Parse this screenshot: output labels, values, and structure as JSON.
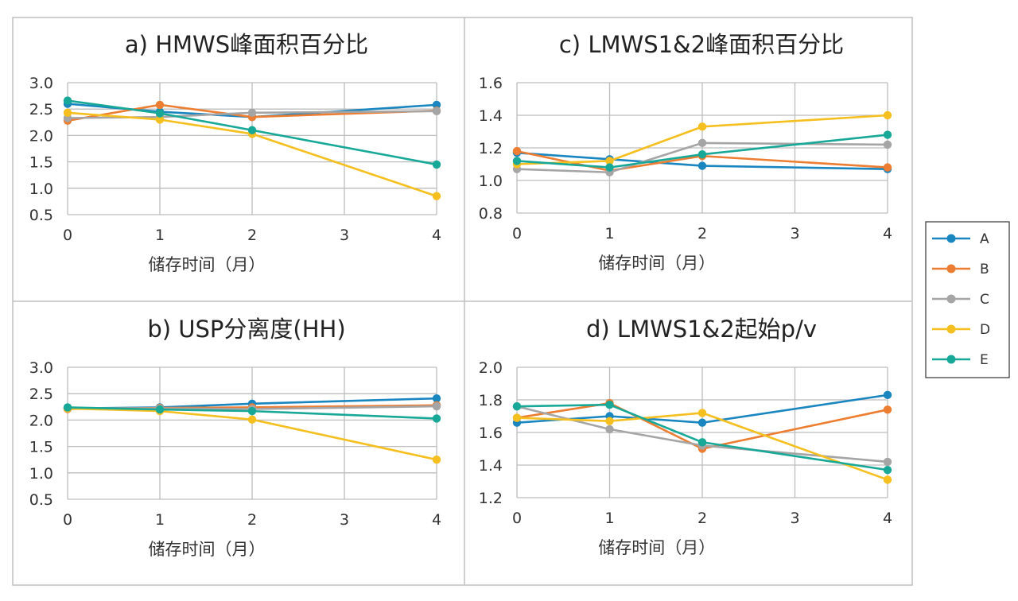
{
  "colors": {
    "A": "#1a86c0",
    "B": "#ed7d31",
    "C": "#a5a5a5",
    "D": "#f5c01f",
    "E": "#17a898"
  },
  "legend": [
    "A",
    "B",
    "C",
    "D",
    "E"
  ],
  "chart_data": [
    {
      "id": "a",
      "type": "line",
      "title": "a) HMWS峰面积百分比",
      "xlabel": "储存时间（月）",
      "ylabel": "",
      "x": [
        0,
        1,
        2,
        4
      ],
      "xticks": [
        0,
        1,
        2,
        3,
        4
      ],
      "xlim": [
        0,
        4
      ],
      "ylim": [
        0.5,
        3.0
      ],
      "yticks": [
        0.5,
        1.0,
        1.5,
        2.0,
        2.5,
        3.0
      ],
      "ytick_labels": [
        "0.5",
        "1.0",
        "1.5",
        "2.0",
        "2.5",
        "3.0"
      ],
      "grid": true,
      "series": [
        {
          "name": "A",
          "values": [
            2.6,
            2.45,
            2.35,
            2.58
          ]
        },
        {
          "name": "B",
          "values": [
            2.28,
            2.58,
            2.35,
            2.47
          ]
        },
        {
          "name": "C",
          "values": [
            2.33,
            2.35,
            2.43,
            2.46
          ]
        },
        {
          "name": "D",
          "values": [
            2.43,
            2.3,
            2.03,
            0.85
          ]
        },
        {
          "name": "E",
          "values": [
            2.66,
            2.42,
            2.1,
            1.45
          ]
        }
      ]
    },
    {
      "id": "b",
      "type": "line",
      "title": "b) USP分离度(HH)",
      "xlabel": "储存时间（月）",
      "ylabel": "",
      "x": [
        0,
        1,
        2,
        4
      ],
      "xticks": [
        0,
        1,
        2,
        3,
        4
      ],
      "xlim": [
        0,
        4
      ],
      "ylim": [
        0.5,
        3.0
      ],
      "yticks": [
        0.5,
        1.0,
        1.5,
        2.0,
        2.5,
        3.0
      ],
      "ytick_labels": [
        "0.5",
        "1.0",
        "1.5",
        "2.0",
        "2.5",
        "3.0"
      ],
      "grid": true,
      "series": [
        {
          "name": "A",
          "values": [
            2.22,
            2.24,
            2.31,
            2.41
          ]
        },
        {
          "name": "B",
          "values": [
            2.21,
            2.23,
            2.24,
            2.28
          ]
        },
        {
          "name": "C",
          "values": [
            2.23,
            2.22,
            2.21,
            2.26
          ]
        },
        {
          "name": "D",
          "values": [
            2.22,
            2.17,
            2.01,
            1.25
          ]
        },
        {
          "name": "E",
          "values": [
            2.24,
            2.2,
            2.17,
            2.03
          ]
        }
      ]
    },
    {
      "id": "c",
      "type": "line",
      "title": "c) LMWS1&2峰面积百分比",
      "xlabel": "储存时间（月）",
      "ylabel": "",
      "x": [
        0,
        1,
        2,
        4
      ],
      "xticks": [
        0,
        1,
        2,
        3,
        4
      ],
      "xlim": [
        0,
        4
      ],
      "ylim": [
        0.8,
        1.6
      ],
      "yticks": [
        0.8,
        1.0,
        1.2,
        1.4,
        1.6
      ],
      "ytick_labels": [
        "0.8",
        "1.0",
        "1.2",
        "1.4",
        "1.6"
      ],
      "grid": true,
      "series": [
        {
          "name": "A",
          "values": [
            1.17,
            1.13,
            1.09,
            1.07
          ]
        },
        {
          "name": "B",
          "values": [
            1.18,
            1.06,
            1.15,
            1.08
          ]
        },
        {
          "name": "C",
          "values": [
            1.07,
            1.05,
            1.23,
            1.22
          ]
        },
        {
          "name": "D",
          "values": [
            1.1,
            1.12,
            1.33,
            1.4
          ]
        },
        {
          "name": "E",
          "values": [
            1.12,
            1.08,
            1.16,
            1.28
          ]
        }
      ]
    },
    {
      "id": "d",
      "type": "line",
      "title": "d) LMWS1&2起始p/v",
      "xlabel": "储存时间（月）",
      "ylabel": "",
      "x": [
        0,
        1,
        2,
        4
      ],
      "xticks": [
        0,
        1,
        2,
        3,
        4
      ],
      "xlim": [
        0,
        4
      ],
      "ylim": [
        1.2,
        2.0
      ],
      "yticks": [
        1.2,
        1.4,
        1.6,
        1.8,
        2.0
      ],
      "ytick_labels": [
        "1.2",
        "1.4",
        "1.6",
        "1.8",
        "2.0"
      ],
      "grid": true,
      "series": [
        {
          "name": "A",
          "values": [
            1.66,
            1.7,
            1.66,
            1.83
          ]
        },
        {
          "name": "B",
          "values": [
            1.69,
            1.78,
            1.5,
            1.74
          ]
        },
        {
          "name": "C",
          "values": [
            1.76,
            1.62,
            1.52,
            1.42
          ]
        },
        {
          "name": "D",
          "values": [
            1.69,
            1.67,
            1.72,
            1.31
          ]
        },
        {
          "name": "E",
          "values": [
            1.76,
            1.77,
            1.54,
            1.37
          ]
        }
      ]
    }
  ]
}
